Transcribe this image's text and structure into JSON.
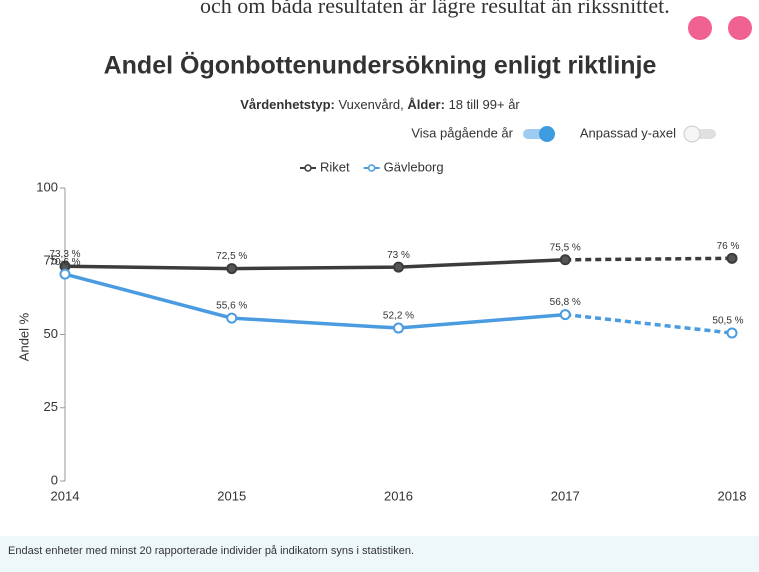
{
  "intro_text": "och om båda resultaten är lägre resultat än rikssnittet.",
  "chart_data": {
    "type": "line",
    "title": "Andel Ögonbottenundersökning enligt riktlinje",
    "subtitle": [
      {
        "text": "Vårdenhetstyp:",
        "bold": true
      },
      {
        "text": " Vuxenvård, ",
        "bold": false
      },
      {
        "text": "Ålder:",
        "bold": true
      },
      {
        "text": " 18 till 99+ år",
        "bold": false
      }
    ],
    "toggles": [
      {
        "label": "Visa pågående år",
        "on": true
      },
      {
        "label": "Anpassad y-axel",
        "on": false
      }
    ],
    "y_label": "Andel %",
    "categories": [
      "2014",
      "2015",
      "2016",
      "2017",
      "2018"
    ],
    "series": [
      {
        "name": "Riket",
        "color": "#3c3c3c",
        "values": [
          73.3,
          72.5,
          73,
          75.5,
          76
        ],
        "value_labels": [
          "73,3 %",
          "72,5 %",
          "73 %",
          "75,5 %",
          "76 %"
        ]
      },
      {
        "name": "Gävleborg",
        "color": "#4a9be0",
        "values": [
          70.6,
          55.6,
          52.2,
          56.8,
          50.5
        ],
        "value_labels": [
          "70,6 %",
          "55,6 %",
          "52,2 %",
          "56,8 %",
          "50,5 %"
        ]
      }
    ],
    "ylim": [
      0,
      100
    ],
    "yticks": [
      0,
      25,
      50,
      75,
      100
    ]
  },
  "footer": "Endast enheter med minst 20 rapporterade individer på indikatorn syns i statistiken."
}
